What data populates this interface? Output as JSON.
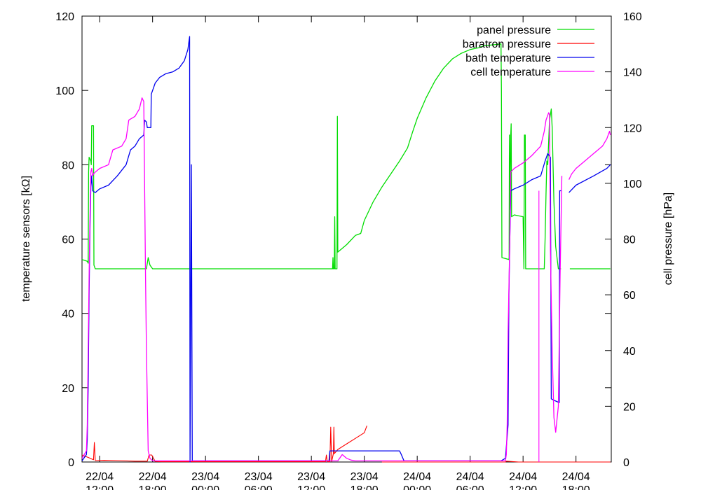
{
  "chart_data": {
    "type": "line",
    "title": "",
    "ylabel": "temperature sensors [kΩ]",
    "y2label": "cell pressure [hPa]",
    "xlabel": "",
    "ylim": [
      0,
      120
    ],
    "y2lim": [
      0,
      160
    ],
    "xlim": [
      0,
      60
    ],
    "y_ticks": [
      "0",
      "20",
      "40",
      "60",
      "80",
      "100",
      "120"
    ],
    "y2_ticks": [
      "0",
      "20",
      "40",
      "60",
      "80",
      "100",
      "120",
      "140",
      "160"
    ],
    "x_ticks": [
      {
        "x": 2,
        "date": "22/04",
        "time": "12:00"
      },
      {
        "x": 8,
        "date": "22/04",
        "time": "18:00"
      },
      {
        "x": 14,
        "date": "23/04",
        "time": "00:00"
      },
      {
        "x": 20,
        "date": "23/04",
        "time": "06:00"
      },
      {
        "x": 26,
        "date": "23/04",
        "time": "12:00"
      },
      {
        "x": 32,
        "date": "23/04",
        "time": "18:00"
      },
      {
        "x": 38,
        "date": "24/04",
        "time": "00:00"
      },
      {
        "x": 44,
        "date": "24/04",
        "time": "06:00"
      },
      {
        "x": 50,
        "date": "24/04",
        "time": "12:00"
      },
      {
        "x": 56,
        "date": "24/04",
        "time": "18:00"
      }
    ],
    "grid": false,
    "legend_position": "top-right",
    "series": [
      {
        "name": "panel pressure",
        "color": "#00dd00",
        "axis": "left",
        "width": 1.3,
        "points": [
          [
            0,
            54.5
          ],
          [
            0.6,
            54
          ],
          [
            0.7,
            53.5
          ],
          [
            0.75,
            78
          ],
          [
            0.8,
            82
          ],
          [
            1.0,
            81
          ],
          [
            1.05,
            80
          ],
          [
            1.1,
            90.5
          ],
          [
            1.3,
            90.5
          ],
          [
            1.35,
            53
          ],
          [
            1.5,
            52
          ],
          [
            7.3,
            52
          ],
          [
            7.5,
            55
          ],
          [
            7.7,
            53
          ],
          [
            8.0,
            52
          ],
          [
            28.4,
            52
          ],
          [
            28.45,
            55
          ],
          [
            28.5,
            52
          ],
          [
            28.6,
            52
          ],
          [
            28.65,
            66
          ],
          [
            28.7,
            52
          ],
          [
            28.9,
            52
          ],
          [
            28.95,
            93
          ],
          [
            29.0,
            56.5
          ],
          [
            30.0,
            58.5
          ],
          [
            31.0,
            61
          ],
          [
            31.6,
            61.5
          ],
          [
            32.0,
            65
          ],
          [
            33.0,
            70
          ],
          [
            34.0,
            74
          ],
          [
            35.0,
            77.5
          ],
          [
            36.0,
            81
          ],
          [
            36.9,
            84.5
          ],
          [
            37.5,
            89
          ],
          [
            38.0,
            92.5
          ],
          [
            39.0,
            98
          ],
          [
            40.0,
            102.5
          ],
          [
            41.0,
            106
          ],
          [
            42.0,
            108.5
          ],
          [
            43.0,
            110
          ],
          [
            44.0,
            111
          ],
          [
            45.0,
            111.5
          ],
          [
            45.5,
            112
          ],
          [
            47.5,
            112.5
          ],
          [
            47.55,
            100
          ],
          [
            47.6,
            55
          ],
          [
            48.4,
            54.5
          ],
          [
            48.42,
            55
          ],
          [
            48.45,
            88
          ],
          [
            48.5,
            68
          ],
          [
            48.6,
            88
          ],
          [
            48.65,
            91
          ],
          [
            48.7,
            66
          ],
          [
            49.0,
            66.5
          ],
          [
            50.0,
            66
          ],
          [
            50.1,
            52
          ],
          [
            50.15,
            88
          ],
          [
            50.25,
            88
          ],
          [
            50.3,
            52
          ],
          [
            52.4,
            52
          ],
          [
            52.5,
            60
          ],
          [
            52.6,
            72
          ],
          [
            52.7,
            81
          ],
          [
            52.8,
            80
          ],
          [
            53.0,
            92
          ],
          [
            53.2,
            95
          ],
          [
            53.3,
            90
          ],
          [
            53.5,
            70
          ],
          [
            53.7,
            58
          ],
          [
            54.0,
            52
          ],
          [
            54.3,
            52
          ],
          [
            54.3,
            null
          ],
          [
            55.3,
            52
          ],
          [
            59.9,
            52
          ]
        ]
      },
      {
        "name": "baratron pressure",
        "color": "#ff0000",
        "axis": "right",
        "width": 1.1,
        "points": [
          [
            0,
            2.5
          ],
          [
            0.8,
            1.5
          ],
          [
            1.0,
            1.2
          ],
          [
            1.3,
            0.8
          ],
          [
            1.4,
            7
          ],
          [
            1.5,
            0.5
          ],
          [
            2.5,
            0.6
          ],
          [
            4.0,
            0.5
          ],
          [
            6.0,
            0.3
          ],
          [
            7.4,
            0.3
          ],
          [
            7.6,
            2.5
          ],
          [
            7.9,
            2.5
          ],
          [
            8.3,
            0.2
          ],
          [
            9.0,
            0.1
          ],
          [
            27.0,
            0.1
          ],
          [
            27.6,
            0.1
          ],
          [
            27.7,
            2.5
          ],
          [
            27.8,
            0.1
          ],
          [
            28.1,
            0.1
          ],
          [
            28.2,
            12.5
          ],
          [
            28.3,
            0.2
          ],
          [
            28.5,
            3
          ],
          [
            28.55,
            12.5
          ],
          [
            28.6,
            3
          ],
          [
            29.0,
            4.5
          ],
          [
            30.0,
            6.5
          ],
          [
            31.0,
            8.5
          ],
          [
            32.0,
            10.5
          ],
          [
            32.3,
            13
          ],
          [
            32.3,
            null
          ],
          [
            34.0,
            0
          ],
          [
            37.0,
            0
          ],
          [
            48.0,
            0
          ],
          [
            48.1,
            0.3
          ],
          [
            49.5,
            0
          ],
          [
            52.0,
            0
          ],
          [
            55.0,
            0
          ],
          [
            59.9,
            0
          ]
        ]
      },
      {
        "name": "bath temperature",
        "color": "#0000ee",
        "axis": "left",
        "width": 1.3,
        "points": [
          [
            0,
            0.3
          ],
          [
            0.5,
            2
          ],
          [
            0.6,
            6
          ],
          [
            0.7,
            20
          ],
          [
            0.8,
            45
          ],
          [
            0.9,
            62
          ],
          [
            1.0,
            74
          ],
          [
            1.1,
            77
          ],
          [
            1.2,
            73
          ],
          [
            1.5,
            72.5
          ],
          [
            2.0,
            73.5
          ],
          [
            3.0,
            74.5
          ],
          [
            4.0,
            77
          ],
          [
            5.0,
            80
          ],
          [
            5.5,
            84
          ],
          [
            6.0,
            85
          ],
          [
            6.5,
            87
          ],
          [
            7.0,
            88
          ],
          [
            7.1,
            92
          ],
          [
            7.3,
            91.5
          ],
          [
            7.4,
            90
          ],
          [
            7.8,
            90
          ],
          [
            7.85,
            99
          ],
          [
            8.0,
            100
          ],
          [
            8.3,
            102
          ],
          [
            8.8,
            103.5
          ],
          [
            9.5,
            104.5
          ],
          [
            10.3,
            105
          ],
          [
            11.0,
            106
          ],
          [
            11.6,
            108
          ],
          [
            12.0,
            111
          ],
          [
            12.2,
            114.5
          ],
          [
            12.25,
            0
          ],
          [
            12.4,
            80
          ],
          [
            12.5,
            0.3
          ],
          [
            28.0,
            0.3
          ],
          [
            28.1,
            3
          ],
          [
            29.0,
            3
          ],
          [
            31.5,
            3
          ],
          [
            33.0,
            3
          ],
          [
            36.0,
            3
          ],
          [
            36.2,
            2
          ],
          [
            36.5,
            0.3
          ],
          [
            38.0,
            0.3
          ],
          [
            47.0,
            0.3
          ],
          [
            47.5,
            0.3
          ],
          [
            48.0,
            1
          ],
          [
            48.3,
            10
          ],
          [
            48.4,
            45
          ],
          [
            48.5,
            60
          ],
          [
            48.6,
            73
          ],
          [
            49.0,
            73.5
          ],
          [
            50.0,
            74.5
          ],
          [
            51.0,
            76
          ],
          [
            52.0,
            77
          ],
          [
            52.5,
            81
          ],
          [
            52.8,
            83
          ],
          [
            53.1,
            82
          ],
          [
            53.2,
            17
          ],
          [
            53.6,
            16.5
          ],
          [
            54.1,
            16
          ],
          [
            54.15,
            73
          ],
          [
            54.3,
            73
          ],
          [
            54.3,
            null
          ],
          [
            55.2,
            72.5
          ],
          [
            56.0,
            74.5
          ],
          [
            58.0,
            77
          ],
          [
            59.5,
            79
          ],
          [
            59.9,
            80
          ]
        ]
      },
      {
        "name": "cell temperature",
        "color": "#ff00ff",
        "axis": "left",
        "width": 1.3,
        "points": [
          [
            0,
            1
          ],
          [
            0.5,
            3
          ],
          [
            0.6,
            10
          ],
          [
            0.7,
            30
          ],
          [
            0.8,
            50
          ],
          [
            0.9,
            65
          ],
          [
            1.0,
            78
          ],
          [
            1.1,
            79
          ],
          [
            1.2,
            77
          ],
          [
            1.3,
            77.5
          ],
          [
            1.5,
            78
          ],
          [
            2.0,
            79
          ],
          [
            3.0,
            80
          ],
          [
            3.5,
            84
          ],
          [
            4.5,
            85
          ],
          [
            5.0,
            87
          ],
          [
            5.3,
            92
          ],
          [
            6.0,
            93
          ],
          [
            6.5,
            95
          ],
          [
            6.8,
            98
          ],
          [
            7.0,
            97
          ],
          [
            7.2,
            50
          ],
          [
            7.3,
            30
          ],
          [
            7.5,
            3
          ],
          [
            7.7,
            1
          ],
          [
            8.0,
            0.3
          ],
          [
            29.0,
            0.3
          ],
          [
            29.5,
            2
          ],
          [
            30.0,
            1
          ],
          [
            30.5,
            0.5
          ],
          [
            31.0,
            0.3
          ],
          [
            48.0,
            0.3
          ],
          [
            48.1,
            2
          ],
          [
            48.2,
            10
          ],
          [
            48.3,
            35
          ],
          [
            48.5,
            60
          ],
          [
            48.6,
            78
          ],
          [
            49.0,
            79
          ],
          [
            50.0,
            80.5
          ],
          [
            51.0,
            82.5
          ],
          [
            52.0,
            85
          ],
          [
            52.4,
            89
          ],
          [
            52.6,
            92
          ],
          [
            52.9,
            94
          ],
          [
            53.0,
            93.5
          ],
          [
            53.1,
            57
          ],
          [
            53.3,
            30
          ],
          [
            53.5,
            12
          ],
          [
            53.7,
            8
          ],
          [
            54.0,
            15
          ],
          [
            54.2,
            50
          ],
          [
            54.4,
            77
          ],
          [
            54.45,
            null
          ],
          [
            55.2,
            76
          ],
          [
            55.5,
            77.5
          ],
          [
            56.0,
            79
          ],
          [
            57.0,
            81
          ],
          [
            58.0,
            83
          ],
          [
            59.0,
            85
          ],
          [
            59.5,
            87
          ],
          [
            59.8,
            89
          ],
          [
            59.9,
            88
          ]
        ]
      },
      {
        "name": "",
        "color": "#ff00ff",
        "axis": "left",
        "width": 1.1,
        "points": [
          [
            51.8,
            0
          ],
          [
            51.8,
            73
          ]
        ]
      }
    ]
  }
}
